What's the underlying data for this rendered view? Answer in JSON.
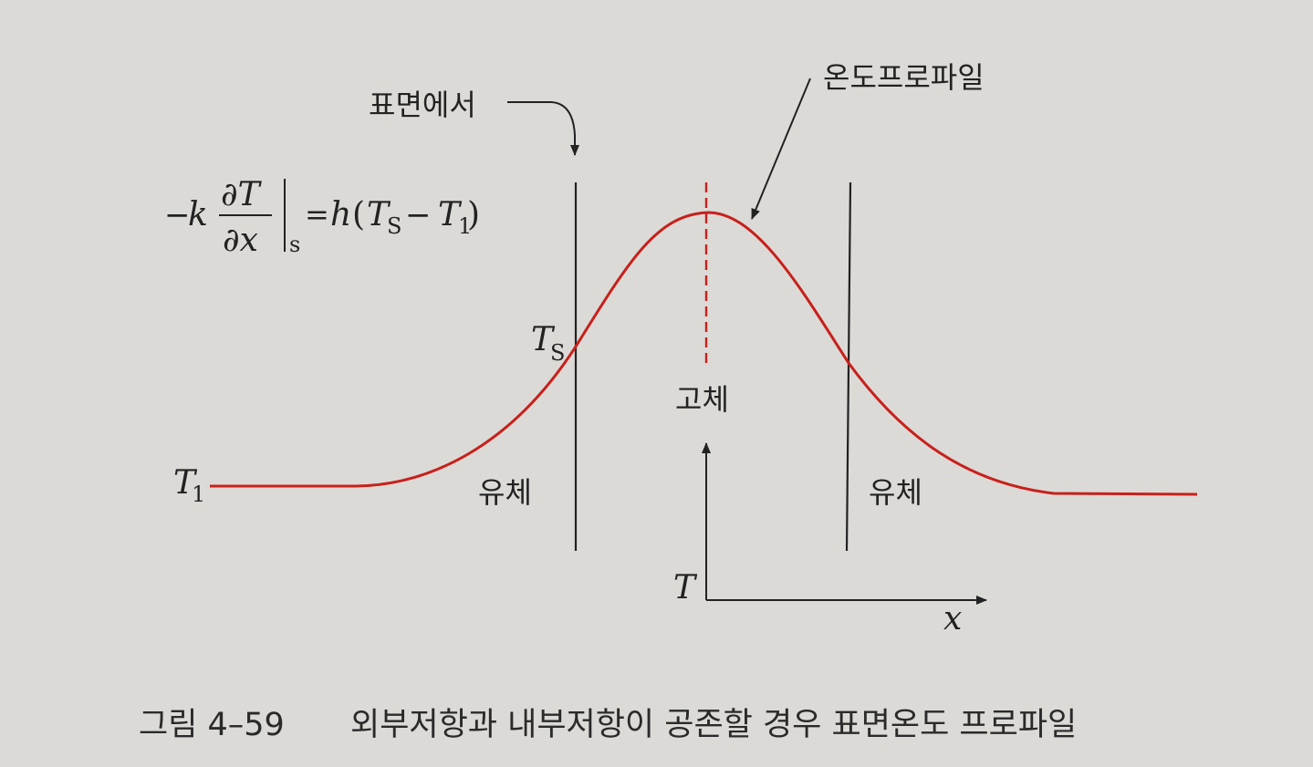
{
  "diagram": {
    "equation": {
      "minus": "−",
      "k": "k",
      "numerator": "∂T",
      "denominator": "∂x",
      "eval_subscript": "s",
      "equals": "=",
      "h": "h",
      "open_paren": "(",
      "T": "T",
      "s_sub": "S",
      "minus2": "−",
      "T2": "T",
      "one_sub": "1",
      "close_paren": ")"
    },
    "labels": {
      "surface": "표면에서",
      "temperature_profile": "온도프로파일",
      "solid": "고체",
      "fluid_left": "유체",
      "fluid_right": "유체",
      "ts_main": "T",
      "ts_sub": "S",
      "t1_main": "T",
      "t1_sub": "1",
      "axis_t": "T",
      "axis_x": "x"
    },
    "caption": {
      "number": "그림 4–59",
      "text": "외부저항과 내부저항이 공존할 경우 표면온도 프로파일"
    },
    "colors": {
      "curve": "#c8201c",
      "ink": "#222222",
      "background": "#dcdad6"
    }
  }
}
